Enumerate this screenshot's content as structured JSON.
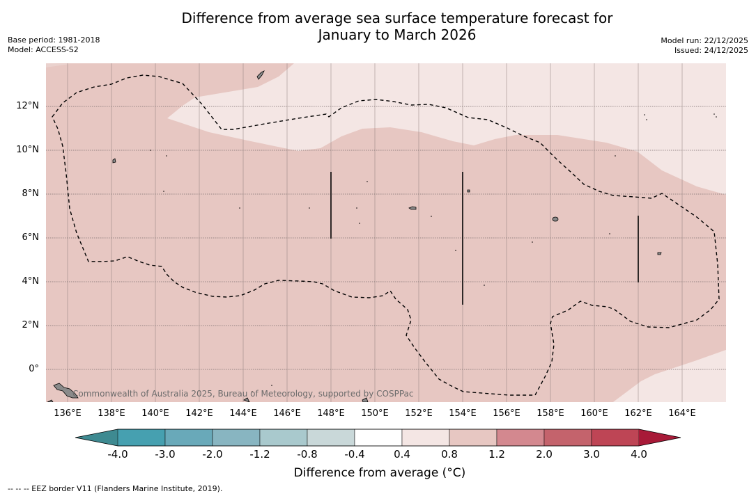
{
  "title": {
    "line1": "Difference from average sea surface temperature forecast for",
    "line2": "January to March 2026"
  },
  "meta_left": {
    "base_period": "Base period: 1981-2018",
    "model": "Model: ACCESS-S2"
  },
  "meta_right": {
    "model_run": "Model run: 22/12/2025",
    "issued": "Issued: 24/12/2025"
  },
  "map": {
    "lat_labels": [
      "12°N",
      "10°N",
      "8°N",
      "6°N",
      "4°N",
      "2°N",
      "0°"
    ],
    "lon_labels": [
      "136°E",
      "138°E",
      "140°E",
      "142°E",
      "144°E",
      "146°E",
      "148°E",
      "150°E",
      "152°E",
      "154°E",
      "156°E",
      "158°E",
      "160°E",
      "162°E",
      "164°E"
    ],
    "credit": "Commonwealth of Australia 2025, Bureau of Meteorology, supported by COSPPac",
    "colors": {
      "warm_0_4_0_8": "#f4e6e4",
      "warm_0_8_1_2": "#e7c7c2",
      "eez_line": "#000000"
    }
  },
  "colorbar": {
    "ticks": [
      "-4.0",
      "-3.0",
      "-2.0",
      "-1.2",
      "-0.8",
      "-0.4",
      "0.4",
      "0.8",
      "1.2",
      "2.0",
      "3.0",
      "4.0"
    ],
    "colors": [
      "#3e8a91",
      "#46a0b0",
      "#69a9b9",
      "#88b5c1",
      "#a9c9cd",
      "#c9d8d9",
      "#ffffff",
      "#f4e6e4",
      "#e7c7c2",
      "#d3888f",
      "#c4636c",
      "#be4555",
      "#a81a38"
    ],
    "label": "Difference from average (°C)"
  },
  "footer": "--  --  -- EEZ border V11 (Flanders Marine Institute, 2019)."
}
